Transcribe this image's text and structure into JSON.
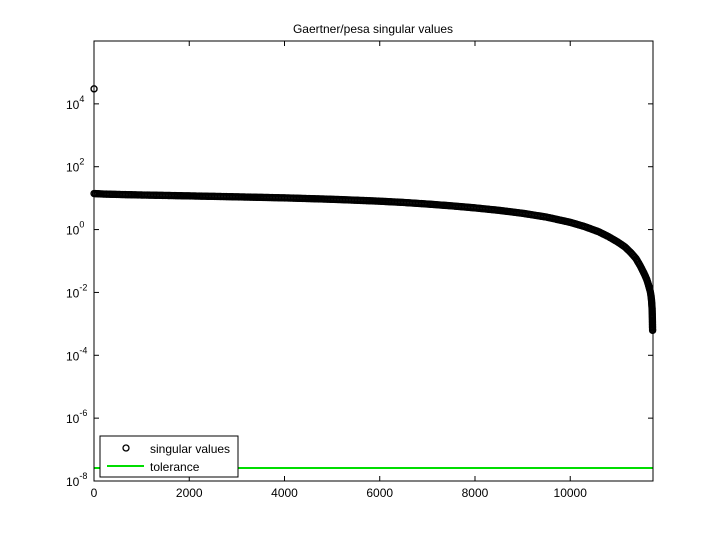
{
  "chart_data": {
    "type": "scatter",
    "title": "Gaertner/pesa singular values",
    "xlabel": "",
    "ylabel": "",
    "x_scale": "linear",
    "y_scale": "log",
    "xlim": [
      0,
      11738
    ],
    "ylim": [
      1e-08,
      1000000.0
    ],
    "x_ticks": [
      {
        "value": 0,
        "label": "0"
      },
      {
        "value": 2000,
        "label": "2000"
      },
      {
        "value": 4000,
        "label": "4000"
      },
      {
        "value": 6000,
        "label": "6000"
      },
      {
        "value": 8000,
        "label": "8000"
      },
      {
        "value": 10000,
        "label": "10000"
      }
    ],
    "y_ticks": [
      {
        "value": 1e-08,
        "base": "10",
        "exp": "-8"
      },
      {
        "value": 1e-06,
        "base": "10",
        "exp": "-6"
      },
      {
        "value": 0.0001,
        "base": "10",
        "exp": "-4"
      },
      {
        "value": 0.01,
        "base": "10",
        "exp": "-2"
      },
      {
        "value": 1,
        "base": "10",
        "exp": "0"
      },
      {
        "value": 100,
        "base": "10",
        "exp": "2"
      },
      {
        "value": 10000,
        "base": "10",
        "exp": "4"
      }
    ],
    "grid": false,
    "legend_position": "bottom-left",
    "series": [
      {
        "name": "singular values",
        "marker": "circle",
        "color": "#000000",
        "points": [
          [
            1,
            30000
          ],
          [
            1,
            14
          ],
          [
            200,
            13.5
          ],
          [
            600,
            13
          ],
          [
            1000,
            12.6
          ],
          [
            1500,
            12.2
          ],
          [
            2000,
            11.8
          ],
          [
            2500,
            11.4
          ],
          [
            3000,
            11.0
          ],
          [
            3500,
            10.6
          ],
          [
            4000,
            10.2
          ],
          [
            4500,
            9.7
          ],
          [
            5000,
            9.2
          ],
          [
            5500,
            8.6
          ],
          [
            6000,
            8.0
          ],
          [
            6500,
            7.3
          ],
          [
            7000,
            6.5
          ],
          [
            7500,
            5.7
          ],
          [
            8000,
            4.9
          ],
          [
            8500,
            4.1
          ],
          [
            9000,
            3.3
          ],
          [
            9500,
            2.5
          ],
          [
            10000,
            1.7
          ],
          [
            10300,
            1.25
          ],
          [
            10600,
            0.85
          ],
          [
            10800,
            0.6
          ],
          [
            11000,
            0.4
          ],
          [
            11150,
            0.28
          ],
          [
            11280,
            0.18
          ],
          [
            11380,
            0.12
          ],
          [
            11460,
            0.075
          ],
          [
            11520,
            0.05
          ],
          [
            11570,
            0.035
          ],
          [
            11610,
            0.025
          ],
          [
            11640,
            0.018
          ],
          [
            11660,
            0.014
          ],
          [
            11680,
            0.011
          ],
          [
            11695,
            0.008
          ],
          [
            11705,
            0.006
          ],
          [
            11712,
            0.0045
          ],
          [
            11718,
            0.0032
          ],
          [
            11722,
            0.0022
          ],
          [
            11726,
            0.0013
          ],
          [
            11728,
            0.00075
          ],
          [
            11730,
            0.00062
          ]
        ]
      },
      {
        "name": "tolerance",
        "marker": "line",
        "color": "#00dd00",
        "x": [
          0,
          11738
        ],
        "y": [
          2.6e-08,
          2.6e-08
        ]
      }
    ]
  }
}
